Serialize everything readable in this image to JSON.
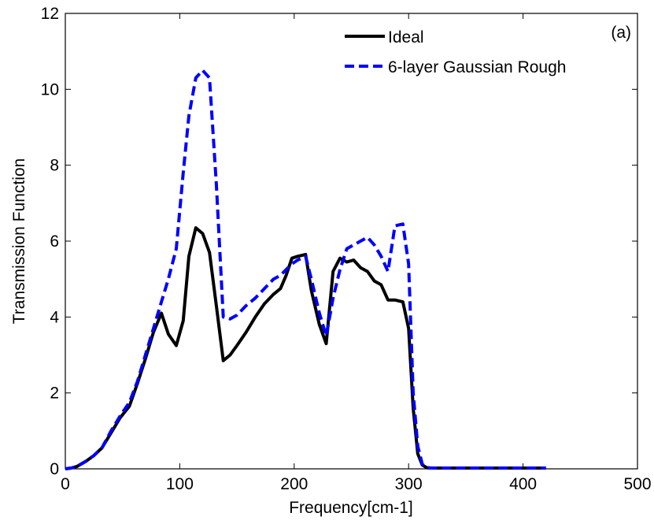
{
  "chart_data": {
    "type": "line",
    "xlabel": "Frequency[cm-1]",
    "ylabel": "Transmission Function",
    "annotation": "(a)",
    "xlim": [
      0,
      500
    ],
    "ylim": [
      0,
      12
    ],
    "xticks": [
      0,
      100,
      200,
      300,
      400,
      500
    ],
    "yticks": [
      0,
      2,
      4,
      6,
      8,
      10,
      12
    ],
    "grid": false,
    "legend_position": "top-right",
    "series": [
      {
        "name": "Ideal",
        "color": "#000000",
        "style": "solid",
        "x": [
          0,
          5,
          10,
          18,
          25,
          32,
          40,
          48,
          56,
          63,
          70,
          77,
          84,
          90,
          97,
          103,
          108,
          114,
          120,
          126,
          132,
          138,
          144,
          150,
          158,
          166,
          174,
          182,
          188,
          193,
          198,
          203,
          210,
          215,
          222,
          228,
          234,
          240,
          246,
          252,
          258,
          264,
          270,
          276,
          282,
          288,
          295,
          300,
          304,
          308,
          312,
          316,
          320,
          330,
          420
        ],
        "y": [
          0.0,
          0.02,
          0.06,
          0.2,
          0.35,
          0.55,
          0.95,
          1.35,
          1.65,
          2.25,
          2.9,
          3.6,
          4.1,
          3.55,
          3.25,
          3.9,
          5.6,
          6.35,
          6.2,
          5.7,
          4.3,
          2.85,
          3.0,
          3.25,
          3.6,
          4.0,
          4.35,
          4.6,
          4.75,
          5.1,
          5.55,
          5.6,
          5.65,
          4.7,
          3.8,
          3.3,
          5.2,
          5.55,
          5.45,
          5.5,
          5.3,
          5.2,
          4.95,
          4.85,
          4.45,
          4.45,
          4.4,
          3.7,
          1.6,
          0.4,
          0.1,
          0.03,
          0.02,
          0.02,
          0.02
        ]
      },
      {
        "name": "6-layer Gaussian Rough",
        "color": "#0000ff",
        "style": "dashed",
        "x": [
          0,
          5,
          10,
          18,
          25,
          32,
          40,
          48,
          56,
          63,
          70,
          77,
          84,
          90,
          97,
          103,
          108,
          114,
          120,
          126,
          132,
          138,
          144,
          150,
          158,
          166,
          174,
          182,
          188,
          193,
          198,
          203,
          210,
          215,
          222,
          228,
          234,
          240,
          246,
          252,
          258,
          264,
          270,
          276,
          282,
          288,
          295,
          300,
          304,
          308,
          312,
          316,
          320,
          330,
          420
        ],
        "y": [
          0.0,
          0.02,
          0.06,
          0.2,
          0.35,
          0.55,
          1.0,
          1.4,
          1.75,
          2.3,
          3.0,
          3.7,
          4.4,
          5.0,
          5.8,
          7.8,
          9.3,
          10.3,
          10.5,
          10.3,
          7.5,
          4.0,
          3.95,
          4.05,
          4.3,
          4.5,
          4.75,
          5.0,
          5.1,
          5.25,
          5.4,
          5.5,
          5.6,
          5.0,
          4.1,
          3.5,
          4.5,
          5.25,
          5.8,
          5.9,
          6.0,
          6.1,
          5.9,
          5.6,
          5.2,
          6.4,
          6.45,
          5.4,
          2.0,
          0.6,
          0.12,
          0.03,
          0.02,
          0.02,
          0.02
        ]
      }
    ]
  }
}
